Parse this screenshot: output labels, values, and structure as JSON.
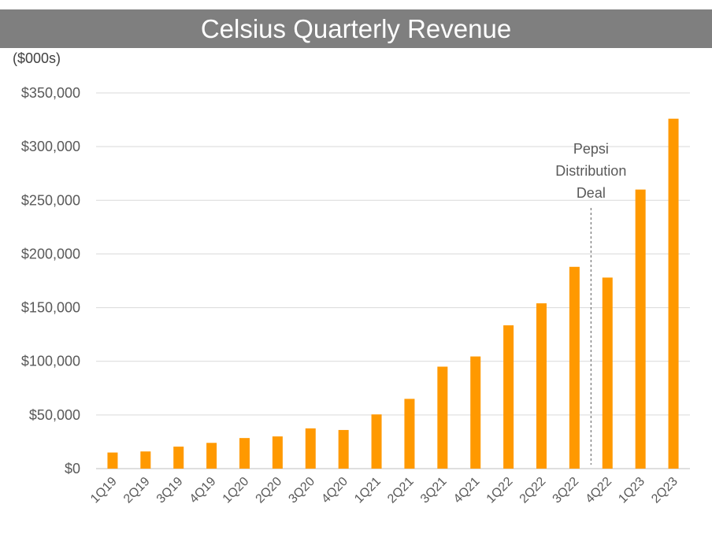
{
  "chart_data": {
    "type": "bar",
    "title": "Celsius Quarterly Revenue",
    "unit_label": "($000s)",
    "xlabel": "",
    "ylabel": "",
    "categories": [
      "1Q19",
      "2Q19",
      "3Q19",
      "4Q19",
      "1Q20",
      "2Q20",
      "3Q20",
      "4Q20",
      "1Q21",
      "2Q21",
      "3Q21",
      "4Q21",
      "1Q22",
      "2Q22",
      "3Q22",
      "4Q22",
      "1Q23",
      "2Q23"
    ],
    "values": [
      15000,
      16000,
      20500,
      24000,
      28500,
      30000,
      37500,
      36000,
      50500,
      65000,
      95000,
      104500,
      133500,
      154000,
      188000,
      178000,
      260000,
      326000
    ],
    "ylim": [
      0,
      350000
    ],
    "yticks": [
      0,
      50000,
      100000,
      150000,
      200000,
      250000,
      300000,
      350000
    ],
    "ytick_labels": [
      "$0",
      "$50,000",
      "$100,000",
      "$150,000",
      "$200,000",
      "$250,000",
      "$300,000",
      "$350,000"
    ],
    "grid": true,
    "bar_color": "#ff9900",
    "annotation": {
      "lines": [
        "Pepsi",
        "Distribution",
        "Deal"
      ],
      "after_category": "3Q22"
    }
  }
}
